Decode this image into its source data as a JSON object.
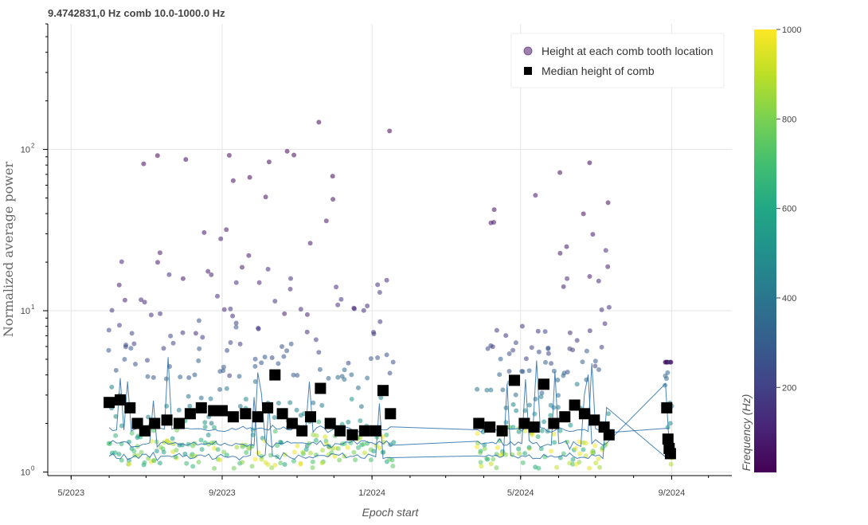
{
  "chart_data": {
    "type": "scatter",
    "title": "9.4742831,0 Hz comb 10.0-1000.0 Hz",
    "xlabel": "Epoch start",
    "ylabel": "Normalized average power",
    "x_axis_type": "date",
    "x_ticks": [
      "5/2023",
      "9/2023",
      "1/2024",
      "5/2024",
      "9/2024"
    ],
    "x_tick_dates": [
      "2023-05-01",
      "2023-09-01",
      "2024-01-01",
      "2024-05-01",
      "2024-09-01"
    ],
    "xlim": [
      "2023-04-12",
      "2024-10-20"
    ],
    "y_scale": "log",
    "ylim": [
      0.95,
      600
    ],
    "y_ticks": [
      {
        "value": 1,
        "base": "10",
        "exp": "0"
      },
      {
        "value": 10,
        "base": "10",
        "exp": "1"
      },
      {
        "value": 100,
        "base": "10",
        "exp": "2"
      }
    ],
    "grid": true,
    "legend_position": "top-right",
    "legend": [
      {
        "label": "Height at each comb tooth location",
        "marker": "circle",
        "color": "#5a2d7a"
      },
      {
        "label": "Median height of comb",
        "marker": "square",
        "color": "#000000"
      }
    ],
    "colorbar": {
      "label": "Frequency (Hz)",
      "range": [
        10,
        1000
      ],
      "ticks": [
        "200",
        "400",
        "600",
        "800",
        "1000"
      ],
      "tick_values": [
        200,
        400,
        600,
        800,
        1000
      ],
      "colormap": "viridis"
    },
    "data_segments": [
      {
        "start": "2023-06-01",
        "end": "2023-08-27"
      },
      {
        "start": "2023-08-28",
        "end": "2024-01-18"
      },
      {
        "start": "2024-03-27",
        "end": "2024-07-12"
      },
      {
        "start": "2024-08-27",
        "end": "2024-09-01"
      }
    ],
    "series": [
      {
        "name": "Median height of comb",
        "marker": "square",
        "points": [
          {
            "x": "2023-06-01",
            "y": 2.7
          },
          {
            "x": "2023-06-10",
            "y": 2.8
          },
          {
            "x": "2023-06-18",
            "y": 2.5
          },
          {
            "x": "2023-06-24",
            "y": 2.0
          },
          {
            "x": "2023-06-30",
            "y": 1.8
          },
          {
            "x": "2023-07-08",
            "y": 2.0
          },
          {
            "x": "2023-07-18",
            "y": 2.1
          },
          {
            "x": "2023-07-28",
            "y": 2.0
          },
          {
            "x": "2023-08-06",
            "y": 2.3
          },
          {
            "x": "2023-08-15",
            "y": 2.5
          },
          {
            "x": "2023-08-25",
            "y": 2.4
          },
          {
            "x": "2023-09-01",
            "y": 2.4
          },
          {
            "x": "2023-09-10",
            "y": 2.2
          },
          {
            "x": "2023-09-20",
            "y": 2.3
          },
          {
            "x": "2023-09-30",
            "y": 2.2
          },
          {
            "x": "2023-10-08",
            "y": 2.5
          },
          {
            "x": "2023-10-14",
            "y": 4.0
          },
          {
            "x": "2023-10-20",
            "y": 2.3
          },
          {
            "x": "2023-10-28",
            "y": 2.0
          },
          {
            "x": "2023-11-05",
            "y": 1.8
          },
          {
            "x": "2023-11-12",
            "y": 2.2
          },
          {
            "x": "2023-11-20",
            "y": 3.3
          },
          {
            "x": "2023-11-28",
            "y": 2.0
          },
          {
            "x": "2023-12-06",
            "y": 1.8
          },
          {
            "x": "2023-12-16",
            "y": 1.7
          },
          {
            "x": "2023-12-26",
            "y": 1.8
          },
          {
            "x": "2024-01-04",
            "y": 1.8
          },
          {
            "x": "2024-01-10",
            "y": 3.2
          },
          {
            "x": "2024-01-16",
            "y": 2.3
          },
          {
            "x": "2024-03-28",
            "y": 2.0
          },
          {
            "x": "2024-04-06",
            "y": 1.9
          },
          {
            "x": "2024-04-16",
            "y": 1.8
          },
          {
            "x": "2024-04-26",
            "y": 3.7
          },
          {
            "x": "2024-05-04",
            "y": 2.0
          },
          {
            "x": "2024-05-12",
            "y": 1.9
          },
          {
            "x": "2024-05-20",
            "y": 3.5
          },
          {
            "x": "2024-05-28",
            "y": 2.0
          },
          {
            "x": "2024-06-06",
            "y": 2.2
          },
          {
            "x": "2024-06-14",
            "y": 2.6
          },
          {
            "x": "2024-06-22",
            "y": 2.3
          },
          {
            "x": "2024-06-30",
            "y": 2.1
          },
          {
            "x": "2024-07-08",
            "y": 1.9
          },
          {
            "x": "2024-07-12",
            "y": 1.7
          },
          {
            "x": "2024-08-28",
            "y": 2.5
          },
          {
            "x": "2024-08-29",
            "y": 1.6
          },
          {
            "x": "2024-08-30",
            "y": 1.4
          },
          {
            "x": "2024-08-31",
            "y": 1.3
          }
        ]
      }
    ]
  }
}
